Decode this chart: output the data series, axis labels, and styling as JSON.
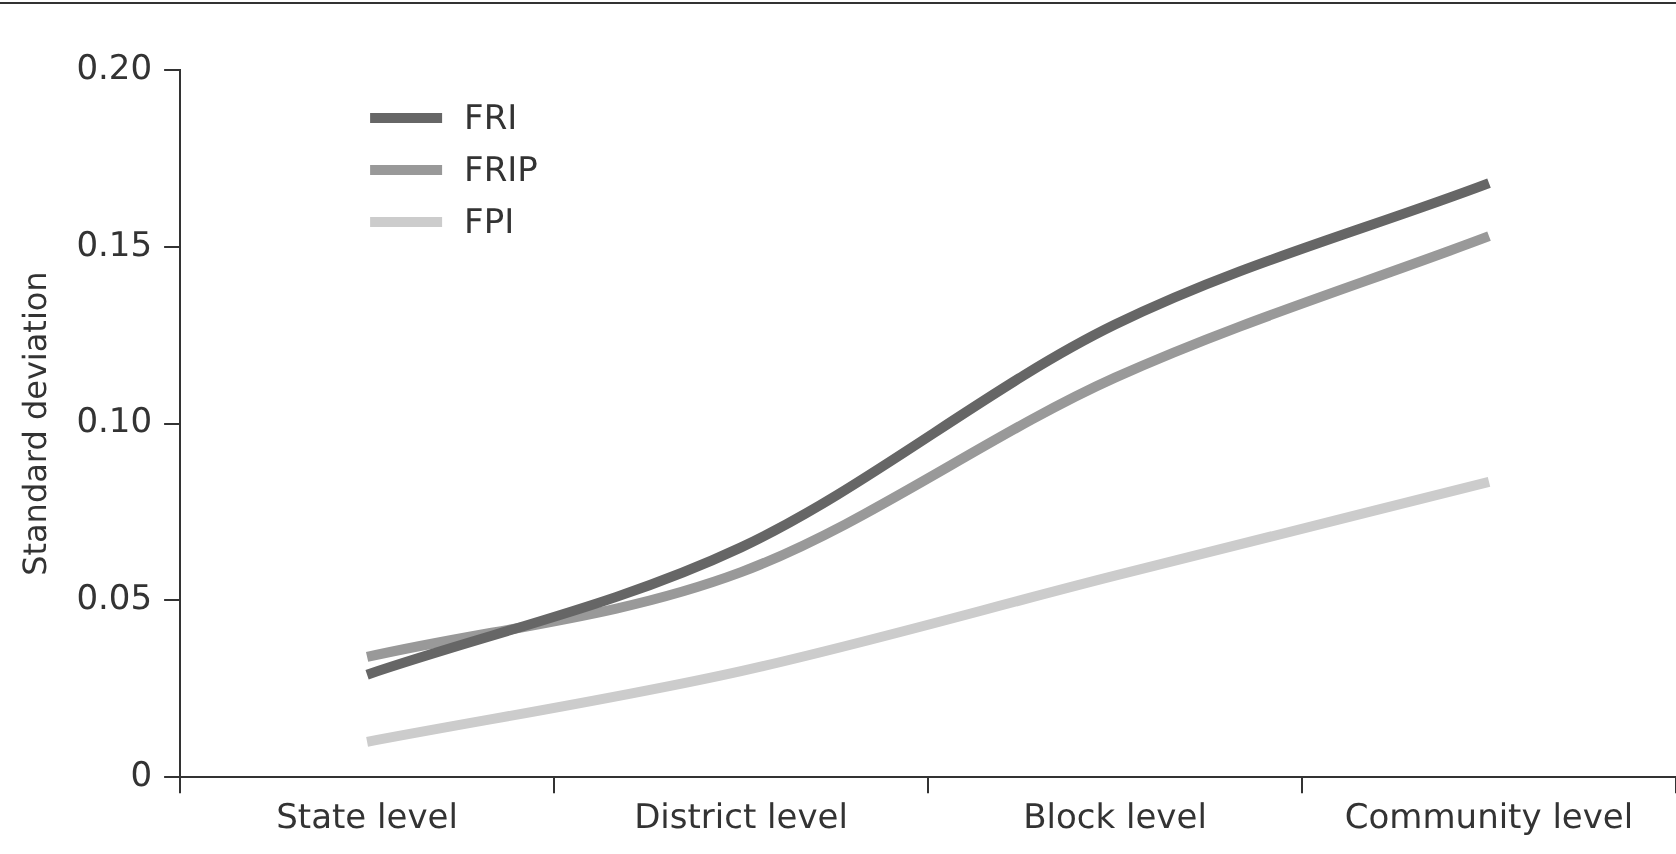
{
  "chart_data": {
    "type": "line",
    "ylabel": "Standard deviation",
    "categories": [
      "State level",
      "District level",
      "Block level",
      "Community level"
    ],
    "series": [
      {
        "name": "FRI",
        "color": "#666666",
        "values": [
          0.029,
          0.065,
          0.128,
          0.168
        ]
      },
      {
        "name": "FRIP",
        "color": "#999999",
        "values": [
          0.034,
          0.058,
          0.113,
          0.153
        ]
      },
      {
        "name": "FPI",
        "color": "#cccccc",
        "values": [
          0.01,
          0.03,
          0.057,
          0.0835
        ]
      }
    ],
    "ylim": [
      0,
      0.2
    ],
    "yticks": [
      0,
      0.05,
      {
        "value": 0.1,
        "label": "0.10"
      },
      0.15,
      {
        "value": 0.2,
        "label": "0.20"
      }
    ],
    "grid": false,
    "legend": "top left",
    "marker": "none",
    "line_style": "solid"
  }
}
